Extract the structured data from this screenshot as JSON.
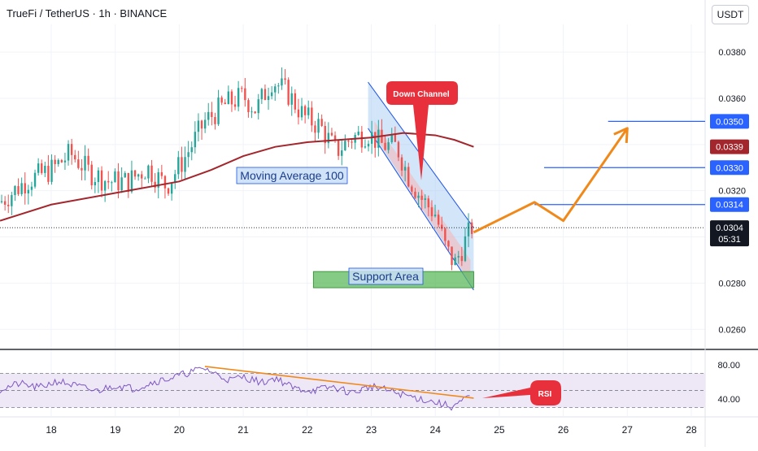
{
  "header": {
    "title": "TrueFi / TetherUS · 1h · BINANCE",
    "currency": "USDT"
  },
  "colors": {
    "up": "#26a69a",
    "down": "#ef5350",
    "ma": "#a3262c",
    "channel_fill": "#9ec5f0",
    "channel_line": "#1e53e5",
    "support_fill": "#5cb85c",
    "projection": "#f0891a",
    "level_line": "#2962ff",
    "rsi": "#7e57c2",
    "rsi_band": "#ede7f6",
    "callout": "#e8303c"
  },
  "chart_data": [
    {
      "type": "candlestick",
      "title": "TrueFi / TetherUS · 1h · BINANCE",
      "xlabel": "",
      "ylabel": "",
      "x_ticks": [
        "18",
        "19",
        "20",
        "21",
        "22",
        "23",
        "24",
        "25",
        "26",
        "27",
        "28"
      ],
      "y_ticks": [
        "0.0380",
        "0.0360",
        "0.0340",
        "0.0320",
        "0.0300",
        "0.0280",
        "0.0260"
      ],
      "ylim": [
        0.0252,
        0.0392
      ],
      "xlim": [
        17.2,
        28.2
      ],
      "anchors": [
        [
          17.2,
          0.0315
        ],
        [
          17.6,
          0.0324
        ],
        [
          18.0,
          0.0329
        ],
        [
          18.3,
          0.0336
        ],
        [
          18.6,
          0.0328
        ],
        [
          18.9,
          0.0324
        ],
        [
          19.2,
          0.0324
        ],
        [
          19.5,
          0.033
        ],
        [
          19.8,
          0.0322
        ],
        [
          20.1,
          0.0335
        ],
        [
          20.4,
          0.035
        ],
        [
          20.7,
          0.0357
        ],
        [
          21.0,
          0.0361
        ],
        [
          21.2,
          0.0355
        ],
        [
          21.45,
          0.0368
        ],
        [
          21.7,
          0.0362
        ],
        [
          21.95,
          0.0352
        ],
        [
          22.2,
          0.0348
        ],
        [
          22.45,
          0.0337
        ],
        [
          22.7,
          0.0343
        ],
        [
          22.95,
          0.0345
        ],
        [
          23.15,
          0.034
        ],
        [
          23.4,
          0.0339
        ],
        [
          23.6,
          0.0325
        ],
        [
          23.8,
          0.0316
        ],
        [
          24.0,
          0.031
        ],
        [
          24.15,
          0.0296
        ],
        [
          24.3,
          0.0288
        ],
        [
          24.45,
          0.0297
        ],
        [
          24.6,
          0.0306
        ]
      ],
      "moving_average": {
        "label": "Moving Average 100",
        "points": [
          [
            17.2,
            0.0307
          ],
          [
            18.0,
            0.0314
          ],
          [
            19.0,
            0.0319
          ],
          [
            20.0,
            0.0324
          ],
          [
            20.5,
            0.0329
          ],
          [
            21.0,
            0.0335
          ],
          [
            21.5,
            0.0339
          ],
          [
            22.0,
            0.0341
          ],
          [
            22.5,
            0.0342
          ],
          [
            23.0,
            0.0343
          ],
          [
            23.5,
            0.0345
          ],
          [
            24.0,
            0.0344
          ],
          [
            24.3,
            0.0342
          ],
          [
            24.6,
            0.0339
          ]
        ]
      },
      "down_channel": {
        "label": "Down Channel",
        "upper": [
          [
            22.95,
            0.0367
          ],
          [
            24.6,
            0.0304
          ]
        ],
        "lower": [
          [
            22.95,
            0.0347
          ],
          [
            24.6,
            0.0277
          ]
        ]
      },
      "support_area": {
        "label": "Support Area",
        "x": [
          23.05,
          24.6
        ],
        "y": [
          0.0278,
          0.0285
        ]
      },
      "projection": [
        [
          24.6,
          0.0302
        ],
        [
          25.55,
          0.0315
        ],
        [
          26.0,
          0.0307
        ],
        [
          27.0,
          0.0347
        ]
      ],
      "levels": [
        {
          "value": 0.035,
          "label": "0.0350",
          "from": 26.7
        },
        {
          "value": 0.033,
          "label": "0.0330",
          "from": 25.7
        },
        {
          "value": 0.0314,
          "label": "0.0314",
          "from": 25.55
        }
      ],
      "ma_marker": {
        "value": 0.0339,
        "label": "0.0339"
      },
      "last_price": {
        "value": 0.0304,
        "label": "0.0304",
        "countdown": "05:31"
      }
    },
    {
      "type": "line",
      "title": "",
      "y_ticks": [
        "80.00",
        "40.00"
      ],
      "ylim": [
        20,
        96
      ],
      "band": [
        30,
        70
      ],
      "label": "RSI",
      "anchors": [
        [
          17.2,
          51
        ],
        [
          17.5,
          58
        ],
        [
          17.8,
          53
        ],
        [
          18.1,
          61
        ],
        [
          18.4,
          55
        ],
        [
          18.7,
          49
        ],
        [
          19.0,
          56
        ],
        [
          19.3,
          52
        ],
        [
          19.6,
          60
        ],
        [
          19.9,
          65
        ],
        [
          20.2,
          72
        ],
        [
          20.4,
          76
        ],
        [
          20.6,
          68
        ],
        [
          20.8,
          62
        ],
        [
          21.0,
          66
        ],
        [
          21.3,
          59
        ],
        [
          21.5,
          65
        ],
        [
          21.8,
          52
        ],
        [
          22.1,
          50
        ],
        [
          22.4,
          54
        ],
        [
          22.7,
          47
        ],
        [
          23.0,
          55
        ],
        [
          23.3,
          49
        ],
        [
          23.6,
          43
        ],
        [
          23.9,
          38
        ],
        [
          24.1,
          34
        ],
        [
          24.25,
          31
        ],
        [
          24.4,
          36
        ],
        [
          24.55,
          44
        ]
      ],
      "trendline": [
        [
          20.4,
          78
        ],
        [
          24.6,
          41
        ]
      ]
    }
  ]
}
